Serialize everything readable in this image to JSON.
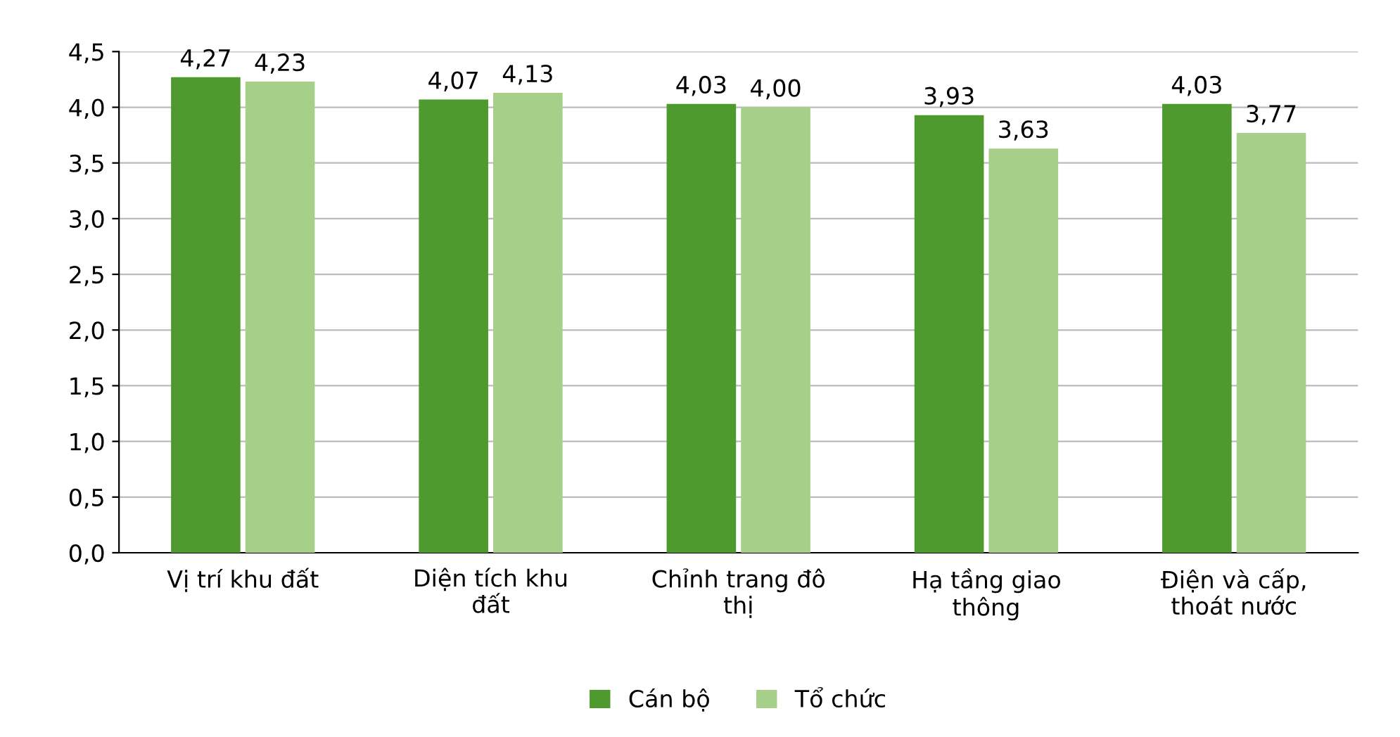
{
  "chart_data": {
    "type": "bar",
    "categories": [
      "Vị trí khu đất",
      "Diện tích khu\nđất",
      "Chỉnh trang đô\nthị",
      "Hạ tầng giao\nthông",
      "Điện và cấp,\nthoát nước"
    ],
    "series": [
      {
        "name": "Cán bộ",
        "color": "#4f9a2f",
        "values": [
          4.27,
          4.07,
          4.03,
          3.93,
          4.03
        ],
        "value_labels": [
          "4,27",
          "4,07",
          "4,03",
          "3,93",
          "4,03"
        ]
      },
      {
        "name": "Tổ chức",
        "color": "#a6cf8a",
        "values": [
          4.23,
          4.13,
          4.0,
          3.63,
          3.77
        ],
        "value_labels": [
          "4,23",
          "4,13",
          "4,00",
          "3,63",
          "3,77"
        ]
      }
    ],
    "ylim": [
      0,
      4.5
    ],
    "yticks": [
      {
        "value": 0,
        "label": "0,0"
      },
      {
        "value": 0.5,
        "label": "0,5"
      },
      {
        "value": 1,
        "label": "1,0"
      },
      {
        "value": 1.5,
        "label": "1,5"
      },
      {
        "value": 2,
        "label": "2,0"
      },
      {
        "value": 2.5,
        "label": "2,5"
      },
      {
        "value": 3,
        "label": "3,0"
      },
      {
        "value": 3.5,
        "label": "3,5"
      },
      {
        "value": 4,
        "label": "4,0"
      },
      {
        "value": 4.5,
        "label": "4,5"
      }
    ],
    "grid": "y",
    "legend": "bottom"
  }
}
